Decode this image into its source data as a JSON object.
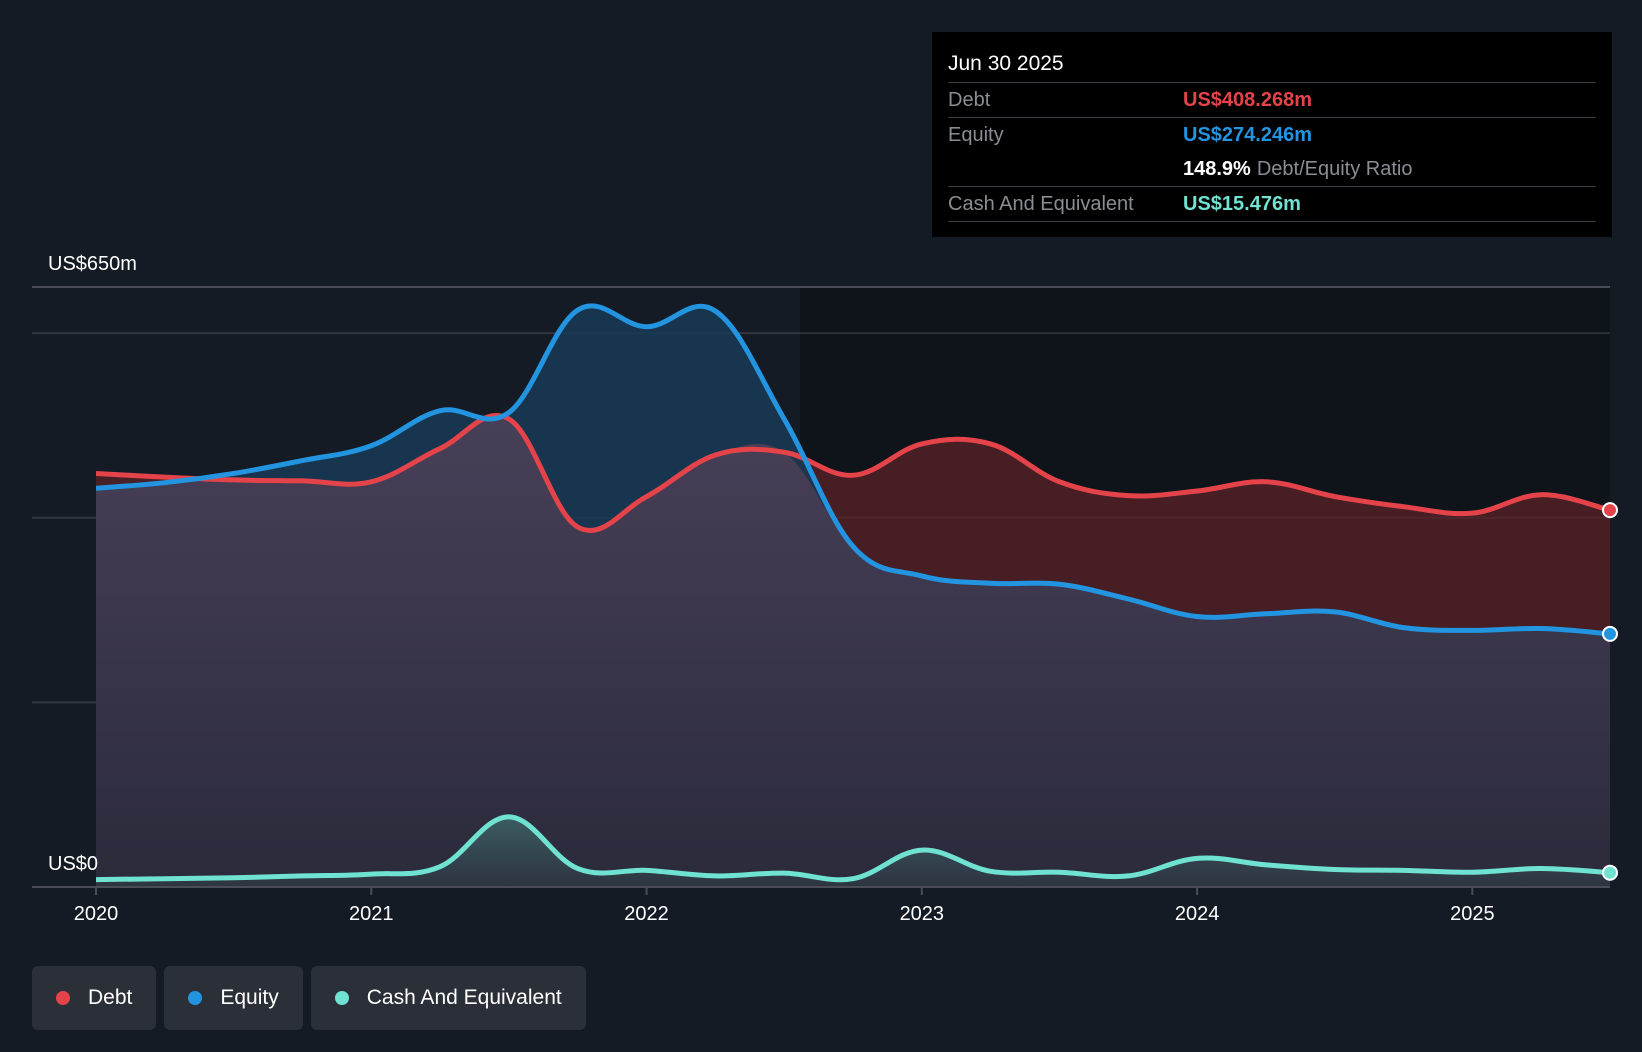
{
  "tooltip": {
    "date": "Jun 30 2025",
    "rows": [
      {
        "label": "Debt",
        "value": "US$408.268m",
        "color": "#e5434a"
      },
      {
        "label": "Equity",
        "value": "US$274.246m",
        "color": "#2394e0"
      },
      {
        "label": "",
        "ratio_value": "148.9%",
        "ratio_label": "Debt/Equity Ratio"
      },
      {
        "label": "Cash And Equivalent",
        "value": "US$15.476m",
        "color": "#6fe2d1"
      }
    ]
  },
  "legend": [
    {
      "label": "Debt",
      "color": "#e5434a"
    },
    {
      "label": "Equity",
      "color": "#2394e0"
    },
    {
      "label": "Cash And Equivalent",
      "color": "#6fe2d1"
    }
  ],
  "chart_data": {
    "type": "area",
    "title": "",
    "xlabel": "",
    "ylabel": "",
    "y_tick_labels": [
      "US$0",
      "US$650m"
    ],
    "ylim": [
      0,
      650
    ],
    "xlim": [
      2020,
      2025.5
    ],
    "x_ticks": [
      2020,
      2021,
      2022,
      2023,
      2024,
      2025
    ],
    "x_tick_labels": [
      "2020",
      "2021",
      "2022",
      "2023",
      "2024",
      "2025"
    ],
    "gridlines": [
      200,
      400,
      600
    ],
    "grid": true,
    "legend_position": "bottom-left",
    "x": [
      2020,
      2020.25,
      2020.5,
      2020.75,
      2021,
      2021.25,
      2021.5,
      2021.75,
      2022,
      2022.25,
      2022.5,
      2022.75,
      2023,
      2023.25,
      2023.5,
      2023.75,
      2024,
      2024.25,
      2024.5,
      2024.75,
      2025,
      2025.25,
      2025.5
    ],
    "series": [
      {
        "name": "Debt",
        "color": "#e5434a",
        "values": [
          448,
          444,
          441,
          440,
          439,
          475,
          507,
          390,
          423,
          468,
          471,
          446,
          480,
          480,
          439,
          424,
          429,
          439,
          423,
          412,
          405,
          425,
          408.268
        ]
      },
      {
        "name": "Equity",
        "color": "#2394e0",
        "values": [
          432,
          438,
          448,
          462,
          478,
          516,
          514,
          625,
          607,
          624,
          507,
          369,
          337,
          329,
          328,
          312,
          293,
          296,
          298,
          281,
          278,
          280,
          274.246
        ]
      },
      {
        "name": "Cash And Equivalent",
        "color": "#6fe2d1",
        "values": [
          8,
          9,
          10,
          12,
          14,
          22,
          76,
          20,
          18,
          12,
          15,
          9,
          40,
          17,
          16,
          12,
          31,
          24,
          19,
          18,
          16,
          20,
          15.476
        ]
      }
    ]
  }
}
